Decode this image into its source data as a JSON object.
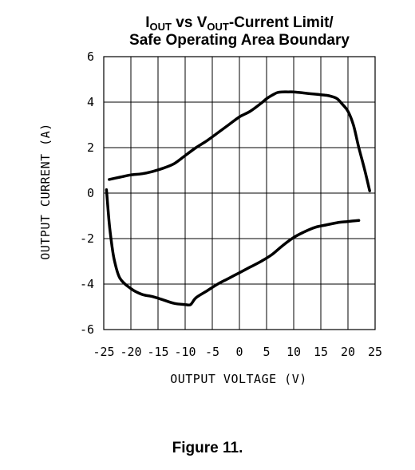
{
  "chart_data": {
    "type": "line",
    "title_line1": {
      "parts": [
        {
          "text": "I",
          "sub": false
        },
        {
          "text": "OUT",
          "sub": true
        },
        {
          "text": " vs V",
          "sub": false
        },
        {
          "text": "OUT",
          "sub": true
        },
        {
          "text": "-Current Limit/",
          "sub": false
        }
      ]
    },
    "title_line2": "Safe Operating Area Boundary",
    "xlabel": "OUTPUT VOLTAGE (V)",
    "ylabel": "OUTPUT CURRENT (A)",
    "xlim": [
      -25,
      25
    ],
    "ylim": [
      -6,
      6
    ],
    "x_ticks": [
      "-25",
      "-20",
      "-15",
      "-10",
      "-5",
      "0",
      "5",
      "10",
      "15",
      "20",
      "25"
    ],
    "y_ticks": [
      "6",
      "4",
      "2",
      "0",
      "-2",
      "-4",
      "-6"
    ],
    "grid": true,
    "series": [
      {
        "color": "#000000",
        "x": [
          -24,
          -22,
          -20,
          -18,
          -16,
          -14,
          -12,
          -10,
          -8,
          -6,
          -4,
          -2,
          0,
          2,
          4,
          5,
          6,
          7,
          8,
          9,
          10,
          12,
          14,
          16,
          17,
          18,
          19,
          20,
          21,
          22,
          23,
          24
        ],
        "y": [
          0.6,
          0.7,
          0.8,
          0.85,
          0.95,
          1.1,
          1.3,
          1.65,
          2.0,
          2.3,
          2.65,
          3.0,
          3.35,
          3.6,
          3.95,
          4.15,
          4.3,
          4.42,
          4.45,
          4.45,
          4.45,
          4.4,
          4.35,
          4.3,
          4.25,
          4.15,
          3.9,
          3.6,
          3.0,
          2.0,
          1.1,
          0.1
        ]
      },
      {
        "color": "#000000",
        "x": [
          -24.5,
          -24,
          -23.5,
          -23,
          -22,
          -20,
          -18,
          -16,
          -14,
          -12,
          -10,
          -9,
          -8,
          -6,
          -4,
          -2,
          0,
          2,
          4,
          6,
          8,
          10,
          12,
          14,
          16,
          18,
          20,
          22
        ],
        "y": [
          0.15,
          -1.3,
          -2.3,
          -3.0,
          -3.75,
          -4.2,
          -4.45,
          -4.55,
          -4.7,
          -4.85,
          -4.9,
          -4.9,
          -4.6,
          -4.3,
          -4.0,
          -3.75,
          -3.5,
          -3.25,
          -3.0,
          -2.7,
          -2.3,
          -1.95,
          -1.7,
          -1.5,
          -1.4,
          -1.3,
          -1.25,
          -1.2
        ]
      }
    ]
  },
  "caption": "Figure 11."
}
